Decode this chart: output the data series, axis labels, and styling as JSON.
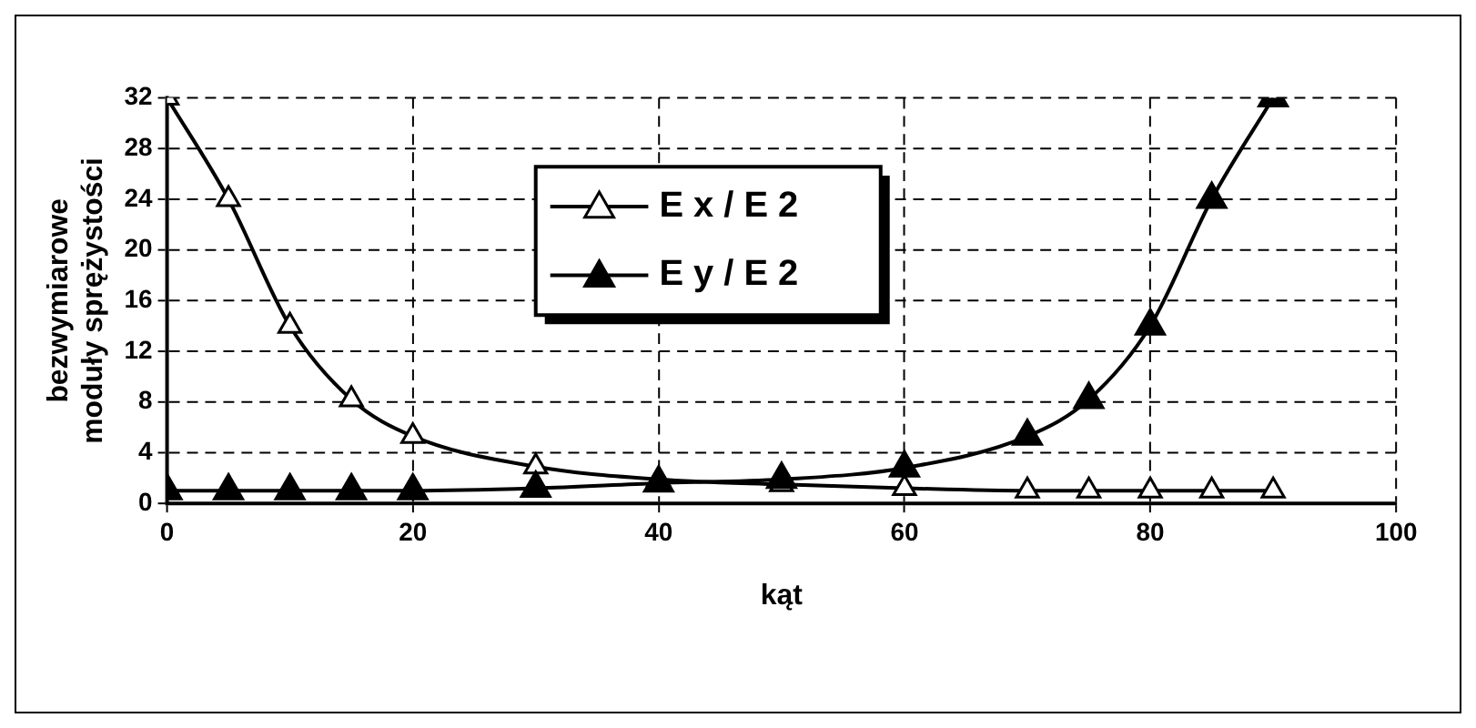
{
  "chart_data": {
    "type": "line",
    "xlabel": "kąt",
    "ylabel": "bezwymiarowe\nmoduły sprężystości",
    "x": [
      0,
      5,
      10,
      15,
      20,
      30,
      40,
      50,
      60,
      70,
      75,
      80,
      85,
      90
    ],
    "series": [
      {
        "name": "E x / E 2",
        "color": "#000000",
        "values": [
          32,
          24,
          14,
          8.2,
          5.3,
          2.9,
          1.9,
          1.5,
          1.2,
          1.0,
          1.0,
          1.0,
          1.0,
          1.0
        ]
      },
      {
        "name": "E y / E 2",
        "color": "#000000",
        "values": [
          1.0,
          1.0,
          1.0,
          1.0,
          1.0,
          1.2,
          1.6,
          1.9,
          2.8,
          5.3,
          8.2,
          14,
          24,
          32
        ]
      }
    ],
    "xlim": [
      0,
      100
    ],
    "xticks": [
      0,
      20,
      40,
      60,
      80,
      100
    ],
    "ylim": [
      0,
      32
    ],
    "yticks": [
      0,
      4,
      8,
      12,
      16,
      20,
      24,
      28,
      32
    ],
    "grid": true,
    "legend": "top",
    "marker": "triangle",
    "line_style": "solid"
  }
}
